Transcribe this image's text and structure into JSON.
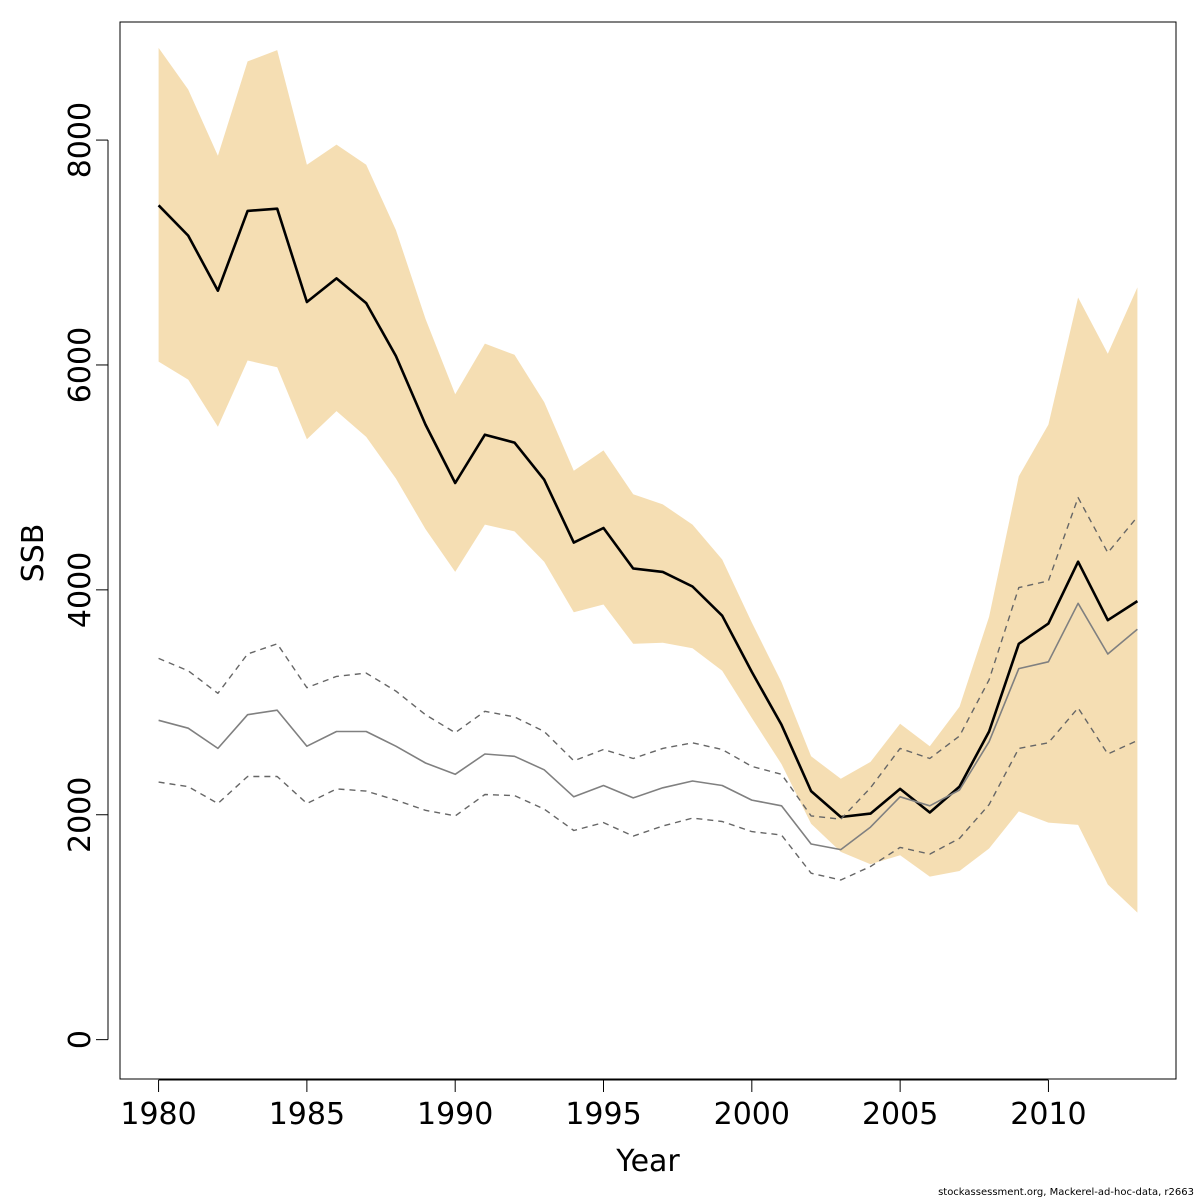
{
  "chart_data": {
    "type": "line",
    "xlabel": "Year",
    "ylabel": "SSB",
    "xlim": [
      1978.7,
      2014.3
    ],
    "ylim": [
      -350,
      9050
    ],
    "xticks": [
      1980,
      1985,
      1990,
      1995,
      2000,
      2005,
      2010
    ],
    "yticks": [
      0,
      2000,
      4000,
      6000,
      8000
    ],
    "grid": false,
    "colors": {
      "band": "#f5deb3",
      "main": "#000000",
      "secondary": "#808080",
      "dashed": "#666666"
    },
    "x": [
      1980,
      1981,
      1982,
      1983,
      1984,
      1985,
      1986,
      1987,
      1988,
      1989,
      1990,
      1991,
      1992,
      1993,
      1994,
      1995,
      1996,
      1997,
      1998,
      1999,
      2000,
      2001,
      2002,
      2003,
      2004,
      2005,
      2006,
      2007,
      2008,
      2009,
      2010,
      2011,
      2012,
      2013
    ],
    "series": [
      {
        "role": "band-upper",
        "style": "fill",
        "values": [
          8820,
          8450,
          7860,
          8700,
          8800,
          7780,
          7960,
          7780,
          7200,
          6410,
          5740,
          6190,
          6090,
          5670,
          5060,
          5240,
          4850,
          4760,
          4580,
          4270,
          3710,
          3180,
          2520,
          2320,
          2470,
          2810,
          2610,
          2960,
          3760,
          5010,
          5470,
          6600,
          6100,
          6690
        ]
      },
      {
        "role": "band-lower",
        "style": "fill",
        "values": [
          6030,
          5870,
          5450,
          6040,
          5980,
          5340,
          5590,
          5360,
          4990,
          4540,
          4160,
          4580,
          4520,
          4250,
          3800,
          3870,
          3520,
          3530,
          3480,
          3280,
          2860,
          2450,
          1920,
          1670,
          1560,
          1640,
          1450,
          1500,
          1700,
          2030,
          1930,
          1910,
          1380,
          1130
        ]
      },
      {
        "role": "estimate",
        "style": "solid-thick",
        "values": [
          7420,
          7150,
          6660,
          7370,
          7390,
          6560,
          6770,
          6550,
          6080,
          5470,
          4950,
          5380,
          5310,
          4980,
          4420,
          4550,
          4190,
          4160,
          4030,
          3770,
          3270,
          2800,
          2210,
          1980,
          2010,
          2230,
          2020,
          2250,
          2740,
          3520,
          3700,
          4250,
          3730,
          3900
        ]
      },
      {
        "role": "secondary-estimate",
        "style": "solid-thin",
        "values": [
          2840,
          2770,
          2590,
          2890,
          2930,
          2610,
          2740,
          2740,
          2610,
          2460,
          2360,
          2540,
          2520,
          2400,
          2160,
          2260,
          2150,
          2240,
          2300,
          2260,
          2130,
          2080,
          1740,
          1690,
          1890,
          2160,
          2080,
          2220,
          2650,
          3300,
          3360,
          3880,
          3430,
          3650
        ]
      },
      {
        "role": "secondary-upper",
        "style": "dashed",
        "values": [
          3390,
          3280,
          3080,
          3430,
          3520,
          3130,
          3230,
          3260,
          3100,
          2890,
          2730,
          2920,
          2870,
          2740,
          2480,
          2580,
          2500,
          2590,
          2640,
          2580,
          2430,
          2360,
          1990,
          1960,
          2240,
          2590,
          2500,
          2700,
          3200,
          4020,
          4080,
          4820,
          4330,
          4650
        ]
      },
      {
        "role": "secondary-lower",
        "style": "dashed",
        "values": [
          2290,
          2250,
          2100,
          2340,
          2340,
          2100,
          2230,
          2210,
          2130,
          2040,
          1990,
          2180,
          2170,
          2050,
          1860,
          1930,
          1810,
          1900,
          1970,
          1940,
          1850,
          1820,
          1480,
          1420,
          1540,
          1710,
          1650,
          1790,
          2090,
          2590,
          2640,
          2950,
          2540,
          2660
        ]
      }
    ]
  },
  "footer": {
    "credit": "stockassessment.org, Mackerel-ad-hoc-data, r2663"
  }
}
